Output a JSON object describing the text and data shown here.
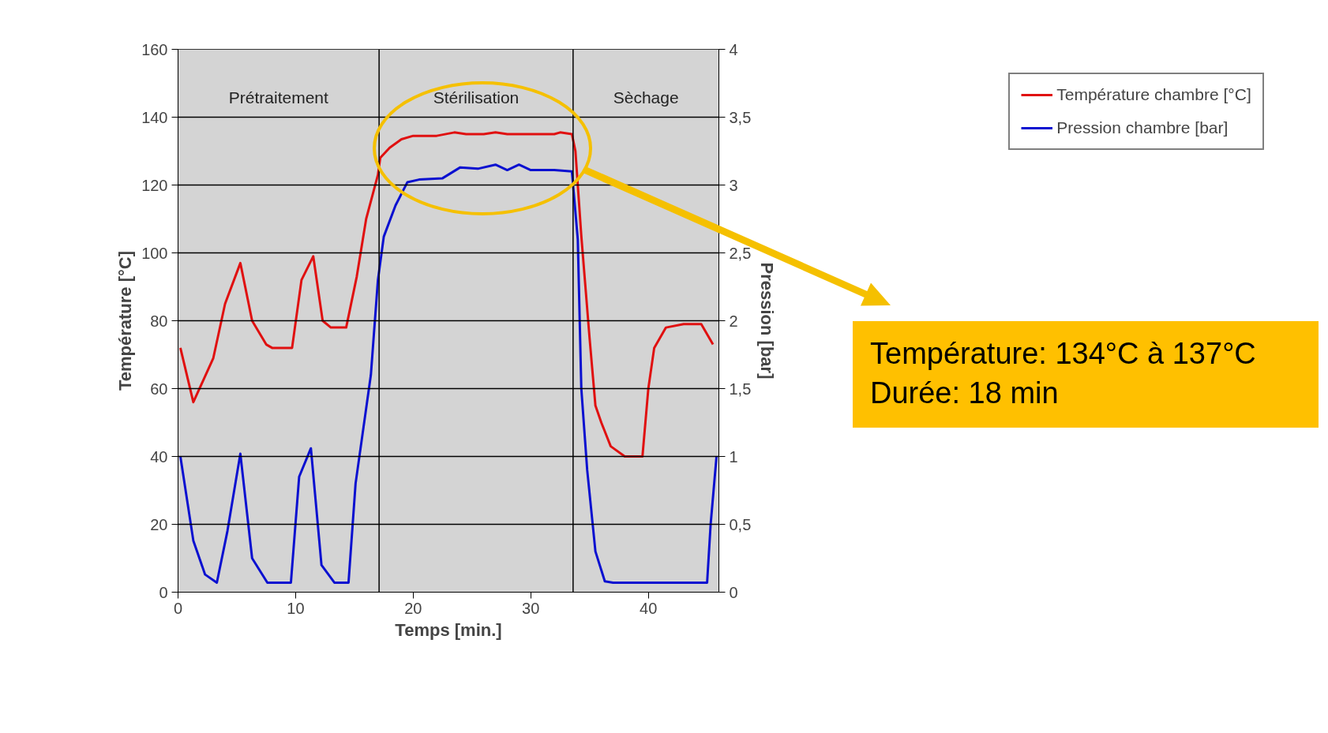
{
  "chart_data": {
    "type": "line",
    "xlabel": "Temps [min.]",
    "ylabel": "Température [°C]",
    "y2label": "Pression [bar]",
    "xlim": [
      0,
      46
    ],
    "xticks": [
      0,
      10,
      20,
      30,
      40
    ],
    "ylim": [
      0,
      160
    ],
    "yticks": [
      0,
      20,
      40,
      60,
      80,
      100,
      120,
      140,
      160
    ],
    "y2lim": [
      0,
      4
    ],
    "y2ticks": [
      0,
      {
        "value": 0.5,
        "label": "0,5"
      },
      1,
      {
        "value": 1.5,
        "label": "1,5"
      },
      2,
      {
        "value": 2.5,
        "label": "2,5"
      },
      3,
      {
        "value": 3.5,
        "label": "3,5"
      },
      4
    ],
    "grid": "y",
    "legend": "top right",
    "marker": "none",
    "line_style": "solid",
    "series": [
      {
        "name": "Température chambre [°C]",
        "color": "#e01010",
        "x": [
          0.2,
          1.3,
          3,
          4,
          5.3,
          6.3,
          7.5,
          8,
          9.7,
          10.5,
          11.5,
          12.3,
          13,
          14.3,
          15.2,
          16,
          17,
          17.2,
          18,
          19,
          20,
          22,
          23.5,
          24.5,
          26,
          27,
          28,
          32,
          32.5,
          33.5,
          33.8,
          34.3,
          35,
          35.5,
          36,
          36.8,
          38,
          39.5,
          40,
          40.5,
          41.5,
          43,
          44.5,
          45.5
        ],
        "values": [
          72,
          56,
          69,
          85,
          97,
          80,
          73,
          72,
          72,
          92,
          99,
          80,
          78,
          78,
          93,
          110,
          123,
          128,
          131,
          133.5,
          134.5,
          134.5,
          135.5,
          135,
          135,
          135.5,
          135,
          135,
          135.5,
          135,
          130,
          105,
          75,
          55,
          50,
          43,
          40,
          40,
          60,
          72,
          78,
          79,
          79,
          73
        ]
      },
      {
        "name": "Pression chambre [bar]",
        "color": "#0a10d0",
        "axis": "y2",
        "x": [
          0.2,
          1.3,
          2.3,
          3.3,
          4.2,
          5.3,
          6.3,
          7.6,
          9.6,
          10.3,
          11.3,
          12.2,
          13.3,
          14.5,
          15.1,
          16.4,
          17,
          17.5,
          18.5,
          19.5,
          20.5,
          22.5,
          24,
          25.5,
          27,
          28,
          29,
          30,
          32,
          33.5,
          34,
          34.3,
          34.8,
          35.5,
          36.3,
          37,
          45,
          45.3,
          45.8
        ],
        "values": [
          1.0,
          0.38,
          0.13,
          0.07,
          0.45,
          1.02,
          0.25,
          0.07,
          0.07,
          0.85,
          1.06,
          0.2,
          0.07,
          0.07,
          0.8,
          1.6,
          2.3,
          2.62,
          2.85,
          3.02,
          3.04,
          3.05,
          3.13,
          3.12,
          3.15,
          3.11,
          3.15,
          3.11,
          3.11,
          3.1,
          2.6,
          1.5,
          0.9,
          0.3,
          0.08,
          0.07,
          0.07,
          0.5,
          1.0
        ]
      }
    ],
    "ref_lines": [
      {
        "axis": "x",
        "value": 17.1,
        "color": "#000000"
      },
      {
        "axis": "x",
        "value": 33.6,
        "color": "#000000"
      }
    ],
    "bands": [
      {
        "axis": "x",
        "from": 0,
        "to": 17.1,
        "label": "Prétraitement",
        "color": "#d4d4d4"
      },
      {
        "axis": "x",
        "from": 17.1,
        "to": 33.6,
        "label": "Stérilisation",
        "color": "#d4d4d4"
      },
      {
        "axis": "x",
        "from": 33.6,
        "to": 46,
        "label": "Sèchage",
        "color": "#d4d4d4"
      }
    ],
    "annotations": [
      "Température: 134°C à 137°C\nDurée: 18 min"
    ]
  }
}
